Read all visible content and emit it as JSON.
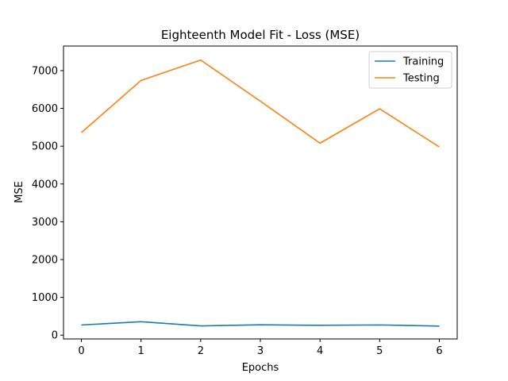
{
  "chart_data": {
    "type": "line",
    "title": "Eighteenth Model Fit - Loss (MSE)",
    "xlabel": "Epochs",
    "ylabel": "MSE",
    "x": [
      0,
      1,
      2,
      3,
      4,
      5,
      6
    ],
    "xlim": [
      -0.3,
      6.3
    ],
    "ylim": [
      -100,
      7650
    ],
    "xticks": [
      0,
      1,
      2,
      3,
      4,
      5,
      6
    ],
    "yticks": [
      0,
      1000,
      2000,
      3000,
      4000,
      5000,
      6000,
      7000
    ],
    "grid": false,
    "legend_position": "top-right",
    "series": [
      {
        "name": "Training",
        "color": "#1f77b4",
        "values": [
          270,
          355,
          245,
          275,
          260,
          270,
          240
        ]
      },
      {
        "name": "Testing",
        "color": "#ff7f0e",
        "values": [
          5360,
          6740,
          7280,
          6190,
          5080,
          5990,
          4980
        ]
      }
    ]
  }
}
